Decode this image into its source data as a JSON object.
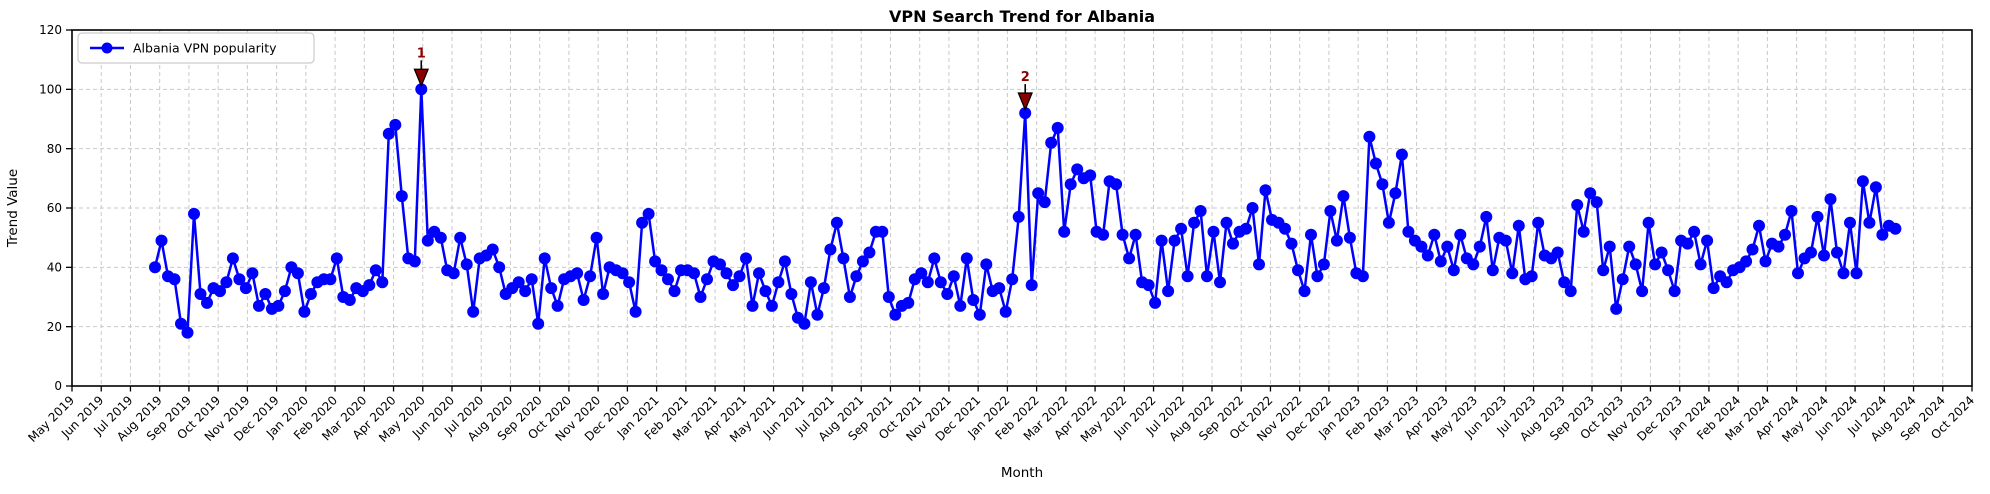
{
  "title": "VPN Search Trend for Albania",
  "xlabel": "Month",
  "ylabel": "Trend Value",
  "legend": {
    "label": "Albania VPN popularity",
    "position": "upper left"
  },
  "colors": {
    "line": "#0000ff",
    "marker": "#0000ff",
    "annotation": "#8b0000",
    "annotation_edge": "#000000",
    "grid": "#c9c9c9",
    "axis": "#000000",
    "background": "#ffffff",
    "legend_border": "#cccccc"
  },
  "chart_data": {
    "type": "line",
    "title": "VPN Search Trend for Albania",
    "xlabel": "Month",
    "ylabel": "Trend Value",
    "ylim": [
      0,
      120
    ],
    "yticks": [
      0,
      20,
      40,
      60,
      80,
      100,
      120
    ],
    "grid": true,
    "legend_position": "upper left",
    "x_tick_labels": [
      "May 2019",
      "Jun 2019",
      "Jul 2019",
      "Aug 2019",
      "Sep 2019",
      "Oct 2019",
      "Nov 2019",
      "Dec 2019",
      "Jan 2020",
      "Feb 2020",
      "Mar 2020",
      "Apr 2020",
      "May 2020",
      "Jun 2020",
      "Jul 2020",
      "Aug 2020",
      "Sep 2020",
      "Oct 2020",
      "Nov 2020",
      "Dec 2020",
      "Jan 2021",
      "Feb 2021",
      "Mar 2021",
      "Apr 2021",
      "May 2021",
      "Jun 2021",
      "Jul 2021",
      "Aug 2021",
      "Sep 2021",
      "Oct 2021",
      "Nov 2021",
      "Dec 2021",
      "Jan 2022",
      "Feb 2022",
      "Mar 2022",
      "Apr 2022",
      "May 2022",
      "Jun 2022",
      "Jul 2022",
      "Aug 2022",
      "Sep 2022",
      "Oct 2022",
      "Nov 2022",
      "Dec 2022",
      "Jan 2023",
      "Feb 2023",
      "Mar 2023",
      "Apr 2023",
      "May 2023",
      "Jun 2023",
      "Jul 2023",
      "Aug 2023",
      "Sep 2023",
      "Oct 2023",
      "Nov 2023",
      "Dec 2023",
      "Jan 2024",
      "Feb 2024",
      "Mar 2024",
      "Apr 2024",
      "May 2024",
      "Jun 2024",
      "Jul 2024",
      "Aug 2024",
      "Sep 2024",
      "Oct 2024"
    ],
    "series": [
      {
        "name": "Albania VPN popularity",
        "color": "#0000ff",
        "marker": "circle",
        "frequency": "weekly",
        "first_point": "Aug 2019",
        "last_point": "Jul 2024",
        "values": [
          40,
          49,
          37,
          36,
          21,
          18,
          58,
          31,
          28,
          33,
          32,
          35,
          43,
          36,
          33,
          38,
          27,
          31,
          26,
          27,
          32,
          40,
          38,
          25,
          31,
          35,
          36,
          36,
          43,
          30,
          29,
          33,
          32,
          34,
          39,
          35,
          85,
          88,
          64,
          43,
          42,
          100,
          49,
          52,
          50,
          39,
          38,
          50,
          41,
          25,
          43,
          44,
          46,
          40,
          31,
          33,
          35,
          32,
          36,
          21,
          43,
          33,
          27,
          36,
          37,
          38,
          29,
          37,
          50,
          31,
          40,
          39,
          38,
          35,
          25,
          55,
          58,
          42,
          39,
          36,
          32,
          39,
          39,
          38,
          30,
          36,
          42,
          41,
          38,
          34,
          37,
          43,
          27,
          38,
          32,
          27,
          35,
          42,
          31,
          23,
          21,
          35,
          24,
          33,
          46,
          55,
          43,
          30,
          37,
          42,
          45,
          52,
          52,
          30,
          24,
          27,
          28,
          36,
          38,
          35,
          43,
          35,
          31,
          37,
          27,
          43,
          29,
          24,
          41,
          32,
          33,
          25,
          36,
          57,
          92,
          34,
          65,
          62,
          82,
          87,
          52,
          68,
          73,
          70,
          71,
          52,
          51,
          69,
          68,
          51,
          43,
          51,
          35,
          34,
          28,
          49,
          32,
          49,
          53,
          37,
          55,
          59,
          37,
          52,
          35,
          55,
          48,
          52,
          53,
          60,
          41,
          66,
          56,
          55,
          53,
          48,
          39,
          32,
          51,
          37,
          41,
          59,
          49,
          64,
          50,
          38,
          37,
          84,
          75,
          68,
          55,
          65,
          78,
          52,
          49,
          47,
          44,
          51,
          42,
          47,
          39,
          51,
          43,
          41,
          47,
          57,
          39,
          50,
          49,
          38,
          54,
          36,
          37,
          55,
          44,
          43,
          45,
          35,
          32,
          61,
          52,
          65,
          62,
          39,
          47,
          26,
          36,
          47,
          41,
          32,
          55,
          41,
          45,
          39,
          32,
          49,
          48,
          52,
          41,
          49,
          33,
          37,
          35,
          39,
          40,
          42,
          46,
          54,
          42,
          48,
          47,
          51,
          59,
          38,
          43,
          45,
          57,
          44,
          63,
          45,
          38,
          55,
          38,
          69,
          55,
          67,
          51,
          54,
          53
        ]
      }
    ],
    "annotations": [
      {
        "text": "1",
        "point_index": 41,
        "value": 100,
        "month": "May 2020"
      },
      {
        "text": "2",
        "point_index": 134,
        "value": 92,
        "month": "Jan 2022"
      }
    ]
  }
}
